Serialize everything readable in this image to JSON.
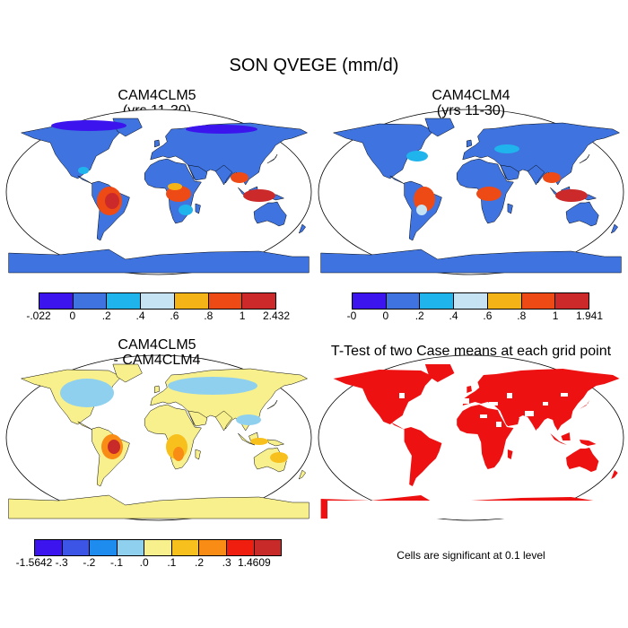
{
  "title": "SON QVEGE (mm/d)",
  "panels": [
    {
      "id": "cam4clm5",
      "title_line1": "CAM4CLM5",
      "title_line2": "(yrs 11-30)",
      "colors": [
        "#3c14ee",
        "#3e73e0",
        "#1fb4ec",
        "#c6e3f4",
        "#f4b317",
        "#ee4a15",
        "#cc2a2a"
      ],
      "ticks": [
        "-.022",
        "0",
        ".2",
        ".4",
        ".6",
        ".8",
        "1",
        "2.432"
      ]
    },
    {
      "id": "cam4clm4",
      "title_line1": "CAM4CLM4",
      "title_line2": "(yrs 11-30)",
      "colors": [
        "#3c14ee",
        "#3e73e0",
        "#1fb4ec",
        "#c6e3f4",
        "#f4b317",
        "#ee4a15",
        "#cc2a2a"
      ],
      "ticks": [
        "-0",
        "0",
        ".2",
        ".4",
        ".6",
        ".8",
        "1",
        "1.941"
      ]
    },
    {
      "id": "difference",
      "title_line1": "CAM4CLM5",
      "title_line2": "- CAM4CLM4",
      "colors": [
        "#3c14ee",
        "#3c55e6",
        "#1e8cee",
        "#8fd0ef",
        "#f8f08c",
        "#f8c01c",
        "#f88c14",
        "#f01e0e",
        "#c82a2a"
      ],
      "ticks": [
        "-1.5642",
        "-.3",
        "-.2",
        "-.1",
        ".0",
        ".1",
        ".2",
        ".3",
        "1.4609"
      ]
    },
    {
      "id": "ttest",
      "title_line1": "T-Test of two Case means at each grid point",
      "significant_color": "#ee1111"
    }
  ],
  "footnote": "Cells are significant at 0.1 level"
}
